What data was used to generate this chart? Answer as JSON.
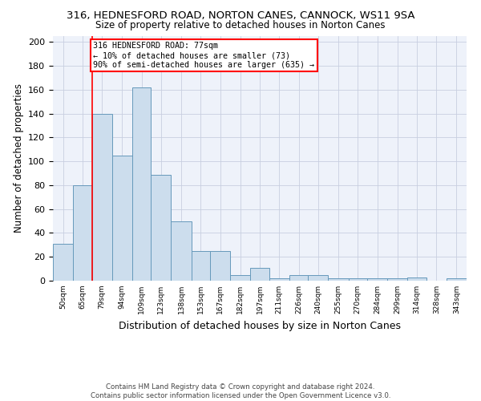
{
  "title1": "316, HEDNESFORD ROAD, NORTON CANES, CANNOCK, WS11 9SA",
  "title2": "Size of property relative to detached houses in Norton Canes",
  "xlabel": "Distribution of detached houses by size in Norton Canes",
  "ylabel": "Number of detached properties",
  "footnote1": "Contains HM Land Registry data © Crown copyright and database right 2024.",
  "footnote2": "Contains public sector information licensed under the Open Government Licence v3.0.",
  "bins": [
    50,
    65,
    79,
    94,
    109,
    123,
    138,
    153,
    167,
    182,
    197,
    211,
    226,
    240,
    255,
    270,
    284,
    299,
    314,
    328,
    343
  ],
  "heights": [
    31,
    80,
    140,
    105,
    162,
    89,
    50,
    25,
    25,
    5,
    11,
    2,
    5,
    5,
    2,
    2,
    2,
    2,
    3,
    0,
    2
  ],
  "bar_color": "#ccdded",
  "bar_edge_color": "#6699bb",
  "grid_color": "#c8cfe0",
  "bg_color": "#eef2fa",
  "red_line_x": 79,
  "annotation_text": "316 HEDNESFORD ROAD: 77sqm\n← 10% of detached houses are smaller (73)\n90% of semi-detached houses are larger (635) →",
  "annotation_box_color": "white",
  "annotation_box_edge_color": "red",
  "ylim": [
    0,
    205
  ],
  "yticks": [
    0,
    20,
    40,
    60,
    80,
    100,
    120,
    140,
    160,
    180,
    200
  ]
}
